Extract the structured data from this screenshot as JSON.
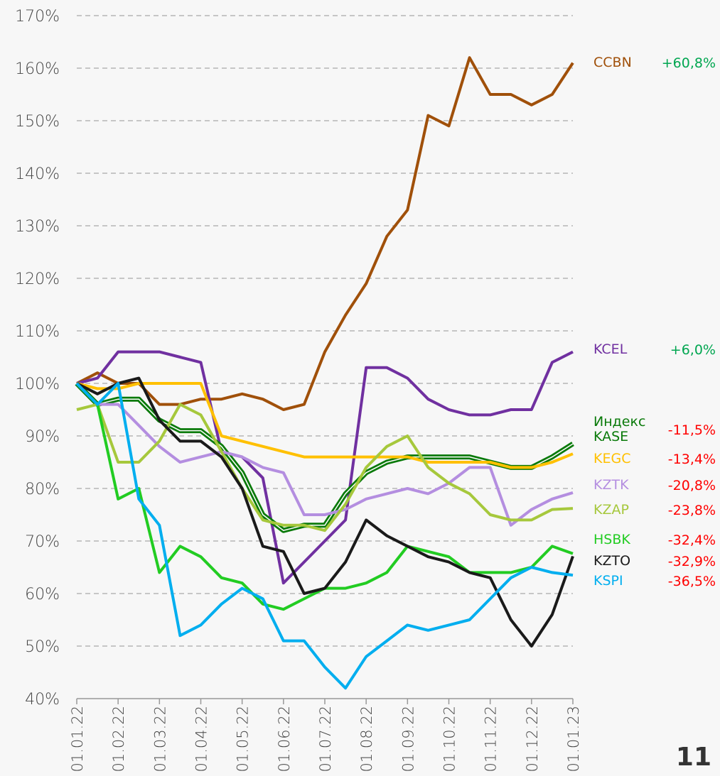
{
  "chart_data": {
    "type": "line",
    "x": [
      0,
      0.5,
      1,
      1.5,
      2,
      2.5,
      3,
      3.5,
      4,
      4.5,
      5,
      5.5,
      6,
      6.5,
      7,
      7.5,
      8,
      8.5,
      9,
      9.5,
      10,
      10.5,
      11,
      11.5,
      12
    ],
    "xlim": [
      0,
      12
    ],
    "xticks": [
      {
        "value": 0,
        "label": "01.01.22"
      },
      {
        "value": 1,
        "label": "01.02.22"
      },
      {
        "value": 2,
        "label": "01.03.22"
      },
      {
        "value": 3,
        "label": "01.04.22"
      },
      {
        "value": 4,
        "label": "01.05.22"
      },
      {
        "value": 5,
        "label": "01.06.22"
      },
      {
        "value": 6,
        "label": "01.07.22"
      },
      {
        "value": 7,
        "label": "01.08.22"
      },
      {
        "value": 8,
        "label": "01.09.22"
      },
      {
        "value": 9,
        "label": "01.10.22"
      },
      {
        "value": 10,
        "label": "01.11.22"
      },
      {
        "value": 11,
        "label": "01.12.22"
      },
      {
        "value": 12,
        "label": "01.01.23"
      }
    ],
    "ylim": [
      40,
      170
    ],
    "yticks": [
      {
        "value": 40,
        "label": "40%"
      },
      {
        "value": 50,
        "label": "50%"
      },
      {
        "value": 60,
        "label": "60%"
      },
      {
        "value": 70,
        "label": "70%"
      },
      {
        "value": 80,
        "label": "80%"
      },
      {
        "value": 90,
        "label": "90%"
      },
      {
        "value": 100,
        "label": "100%"
      },
      {
        "value": 110,
        "label": "110%"
      },
      {
        "value": 120,
        "label": "120%"
      },
      {
        "value": 130,
        "label": "130%"
      },
      {
        "value": 140,
        "label": "140%"
      },
      {
        "value": 150,
        "label": "150%"
      },
      {
        "value": 160,
        "label": "160%"
      },
      {
        "value": 170,
        "label": "170%"
      }
    ],
    "grid": true,
    "series": [
      {
        "name": "CCBN",
        "color": "#a0500a",
        "change": {
          "value": 60.8,
          "label": "+60,8%"
        },
        "values": [
          100,
          102,
          100,
          100,
          96,
          96,
          97,
          97,
          98,
          97,
          95,
          96,
          106,
          113,
          119,
          128,
          133,
          151,
          149,
          162,
          155,
          155,
          153,
          155,
          161
        ]
      },
      {
        "name": "KCEL",
        "color": "#7030a0",
        "change": {
          "value": 6.0,
          "label": "+6,0%"
        },
        "values": [
          100,
          101,
          106,
          106,
          106,
          105,
          104,
          87,
          86,
          82,
          62,
          66,
          70,
          74,
          103,
          103,
          101,
          97,
          95,
          94,
          94,
          95,
          95,
          104,
          106
        ]
      },
      {
        "name": "Индекс KASE",
        "color": "#0a7a0a",
        "change": {
          "value": -11.5,
          "label": "-11,5%"
        },
        "values": [
          100,
          96,
          97,
          97,
          93,
          91,
          91,
          88,
          83,
          75,
          72,
          73,
          73,
          79,
          83,
          85,
          86,
          86,
          86,
          86,
          85,
          84,
          84,
          86,
          88.5
        ]
      },
      {
        "name": "KEGC",
        "color": "#ffc000",
        "change": {
          "value": -13.4,
          "label": "-13,4%"
        },
        "values": [
          100,
          99,
          99,
          100,
          100,
          100,
          100,
          90,
          89,
          88,
          87,
          86,
          86,
          86,
          86,
          86,
          86,
          85,
          85,
          85,
          85,
          84,
          84,
          85,
          86.6
        ]
      },
      {
        "name": "KZTK",
        "color": "#b48ee0",
        "change": {
          "value": -20.8,
          "label": "-20,8%"
        },
        "values": [
          100,
          96,
          96,
          92,
          88,
          85,
          86,
          87,
          86,
          84,
          83,
          75,
          75,
          76,
          78,
          79,
          80,
          79,
          81,
          84,
          84,
          73,
          76,
          78,
          79.2
        ]
      },
      {
        "name": "KZAP",
        "color": "#a6c83c",
        "change": {
          "value": -23.8,
          "label": "-23,8%"
        },
        "values": [
          95,
          96,
          85,
          85,
          89,
          96,
          94,
          87,
          80,
          74,
          73,
          73,
          72,
          77,
          84,
          88,
          90,
          84,
          81,
          79,
          75,
          74,
          74,
          76,
          76.2
        ]
      },
      {
        "name": "HSBK",
        "color": "#22cc22",
        "change": {
          "value": -32.4,
          "label": "-32,4%"
        },
        "values": [
          100,
          96,
          78,
          80,
          64,
          69,
          67,
          63,
          62,
          58,
          57,
          59,
          61,
          61,
          62,
          64,
          69,
          68,
          67,
          64,
          64,
          64,
          65,
          69,
          67.6
        ]
      },
      {
        "name": "KZTO",
        "color": "#1a1a1a",
        "change": {
          "value": -32.9,
          "label": "-32,9%"
        },
        "values": [
          100,
          98,
          100,
          101,
          93,
          89,
          89,
          86,
          80,
          69,
          68,
          60,
          61,
          66,
          74,
          71,
          69,
          67,
          66,
          64,
          63,
          55,
          50,
          56,
          67.1
        ]
      },
      {
        "name": "KSPI",
        "color": "#00aeef",
        "change": {
          "value": -36.5,
          "label": "-36,5%"
        },
        "values": [
          100,
          96,
          100,
          78,
          73,
          52,
          54,
          58,
          61,
          59,
          51,
          51,
          46,
          42,
          48,
          51,
          54,
          53,
          54,
          55,
          59,
          63,
          65,
          64,
          63.5
        ]
      }
    ]
  },
  "page_number": "11"
}
